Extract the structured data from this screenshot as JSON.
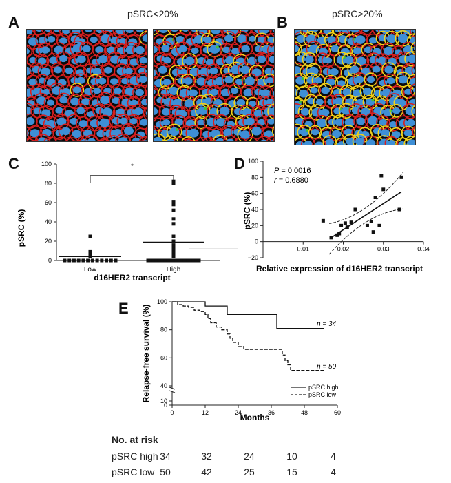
{
  "panels": {
    "a": {
      "letter": "A",
      "title": "pSRC<20%"
    },
    "b": {
      "letter": "B",
      "title": "pSRC>20%"
    },
    "c": {
      "letter": "C"
    },
    "d": {
      "letter": "D"
    },
    "e": {
      "letter": "E"
    }
  },
  "colors": {
    "nucleus": "#3e8fd6",
    "membrane": "#d81f1f",
    "membrane_strong": "#f2d21a",
    "green": "#3fbf3f",
    "background": "#0a0a0a"
  },
  "chart_data": [
    {
      "panel": "C",
      "type": "scatter",
      "xlabel": "d16HER2 transcript",
      "ylabel": "pSRC (%)",
      "categories": [
        "Low",
        "High"
      ],
      "ylim": [
        0,
        100
      ],
      "yticks": [
        "0",
        "20",
        "40",
        "60",
        "80",
        "100"
      ],
      "significance": "*",
      "series": [
        {
          "category": "Low",
          "median": 4,
          "values": [
            0,
            0,
            0,
            0,
            0,
            0,
            0,
            0,
            0,
            0,
            0,
            0,
            4,
            6,
            9,
            25
          ]
        },
        {
          "category": "High",
          "median": 19,
          "values": [
            0,
            0,
            0,
            0,
            0,
            0,
            0,
            0,
            0,
            0,
            0,
            0,
            0,
            0,
            0,
            0,
            0,
            0,
            0,
            4,
            6,
            9,
            12,
            16,
            20,
            25,
            38,
            43,
            52,
            58,
            61,
            80,
            82
          ]
        }
      ]
    },
    {
      "panel": "D",
      "type": "scatter",
      "xlabel": "Relative expression of d16HER2 transcript",
      "ylabel": "pSRC (%)",
      "xlim": [
        0,
        0.04
      ],
      "ylim": [
        -20,
        100
      ],
      "xticks": [
        "0.01",
        "0.02",
        "0.03",
        "0.04"
      ],
      "yticks": [
        "−20",
        "0",
        "20",
        "40",
        "60",
        "80",
        "100"
      ],
      "annotations": {
        "p_label": "P",
        "p_value": " = 0.0016",
        "r_label": "r",
        "r_value": " = 0.6880"
      },
      "x": [
        0.015,
        0.017,
        0.0185,
        0.019,
        0.0195,
        0.0205,
        0.021,
        0.022,
        0.023,
        0.026,
        0.027,
        0.0275,
        0.028,
        0.029,
        0.0295,
        0.03,
        0.034,
        0.0345
      ],
      "y": [
        26,
        5,
        8,
        10,
        20,
        23,
        18,
        24,
        40,
        20,
        25,
        12,
        55,
        20,
        82,
        65,
        40,
        80
      ],
      "fit": {
        "x": [
          0.017,
          0.0345
        ],
        "y": [
          5,
          62
        ]
      }
    },
    {
      "panel": "E",
      "type": "line",
      "xlabel": "Months",
      "ylabel": "Relapse-free survival (%)",
      "xlim": [
        0,
        60
      ],
      "xticks": [
        "0",
        "12",
        "24",
        "36",
        "48",
        "60"
      ],
      "yticks": [
        "0",
        "10",
        "40",
        "60",
        "80",
        "100"
      ],
      "series": [
        {
          "name": "pSRC high",
          "n_label": "n = 34",
          "x": [
            0,
            12,
            12,
            20,
            20,
            38,
            38,
            55
          ],
          "y": [
            100,
            100,
            97,
            97,
            91,
            91,
            81,
            81
          ]
        },
        {
          "name": "pSRC low",
          "n_label": "n = 50",
          "x": [
            0,
            2,
            4,
            6,
            8,
            10,
            12,
            13,
            14,
            16,
            18,
            20,
            21,
            22,
            24,
            26,
            30,
            36,
            40,
            41,
            42,
            43,
            50,
            55
          ],
          "y": [
            100,
            98,
            97,
            96,
            94,
            93,
            91,
            88,
            85,
            82,
            80,
            77,
            74,
            71,
            68,
            66,
            66,
            66,
            62,
            58,
            55,
            51,
            51,
            51
          ]
        }
      ],
      "risk_table": {
        "title": "No. at risk",
        "rows": [
          {
            "label": "pSRC high",
            "values": [
              "34",
              "32",
              "24",
              "10",
              "4"
            ]
          },
          {
            "label": "pSRC low",
            "values": [
              "50",
              "42",
              "25",
              "15",
              "4"
            ]
          }
        ]
      }
    }
  ]
}
